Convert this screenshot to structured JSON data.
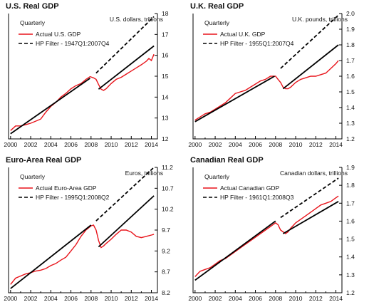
{
  "chart_data": [
    {
      "type": "line",
      "title": "U.S. Real GDP",
      "units": "U.S. dollars, trillions",
      "frequency": "Quarterly",
      "xlim": [
        1999.8,
        2014.6
      ],
      "ylim": [
        12,
        18
      ],
      "y_ticks": [
        "12",
        "13",
        "14",
        "15",
        "16",
        "17",
        "18"
      ],
      "x_ticks": [
        "2000",
        "2002",
        "2004",
        "2006",
        "2008",
        "2010",
        "2012",
        "2014"
      ],
      "legend_placement": "top-left",
      "series": [
        {
          "name": "Actual U.S. GDP",
          "color": "#e8141b",
          "style": "solid",
          "x": [
            2000.0,
            2000.5,
            2001.0,
            2001.5,
            2002.0,
            2002.5,
            2003.0,
            2003.5,
            2004.0,
            2004.5,
            2005.0,
            2005.5,
            2006.0,
            2006.5,
            2007.0,
            2007.5,
            2007.9,
            2008.25,
            2008.5,
            2008.75,
            2009.0,
            2009.25,
            2009.5,
            2010.0,
            2010.5,
            2011.0,
            2011.5,
            2012.0,
            2012.5,
            2013.0,
            2013.5,
            2013.75,
            2014.0,
            2014.25
          ],
          "y": [
            12.4,
            12.62,
            12.62,
            12.68,
            12.75,
            12.85,
            12.95,
            13.28,
            13.55,
            13.75,
            14.0,
            14.18,
            14.4,
            14.55,
            14.65,
            14.85,
            14.98,
            14.92,
            14.85,
            14.6,
            14.38,
            14.32,
            14.4,
            14.65,
            14.85,
            14.95,
            15.1,
            15.25,
            15.4,
            15.55,
            15.72,
            15.85,
            15.75,
            16.05
          ]
        },
        {
          "name": "HP Filter - 1947Q1:2007Q4",
          "color": "#000000",
          "style": "mixed",
          "x": [
            2000.0,
            2007.9,
            2008.5,
            2014.25
          ],
          "y": [
            12.25,
            14.9,
            15.15,
            17.85
          ]
        },
        {
          "name": "",
          "color": "#000000",
          "style": "solid",
          "x": [
            2008.75,
            2014.25
          ],
          "y": [
            14.38,
            16.45
          ]
        }
      ]
    },
    {
      "type": "line",
      "title": "U.K. Real GDP",
      "units": "U.K. pounds, trillions",
      "frequency": "Quarterly",
      "xlim": [
        1999.8,
        2014.6
      ],
      "ylim": [
        1.2,
        2.0
      ],
      "y_ticks": [
        "1.2",
        "1.3",
        "1.4",
        "1.5",
        "1.6",
        "1.7",
        "1.8",
        "1.9",
        "2.0"
      ],
      "x_ticks": [
        "2000",
        "2002",
        "2004",
        "2006",
        "2008",
        "2010",
        "2012",
        "2014"
      ],
      "legend_placement": "top-left",
      "series": [
        {
          "name": "Actual U.K. GDP",
          "color": "#e8141b",
          "style": "solid",
          "x": [
            2000.0,
            2000.5,
            2001.0,
            2001.5,
            2002.0,
            2002.5,
            2003.0,
            2003.5,
            2004.0,
            2004.5,
            2005.0,
            2005.5,
            2006.0,
            2006.5,
            2007.0,
            2007.5,
            2008.0,
            2008.25,
            2008.5,
            2008.75,
            2009.0,
            2009.25,
            2009.5,
            2010.0,
            2010.5,
            2011.0,
            2011.5,
            2012.0,
            2012.5,
            2013.0,
            2013.5,
            2014.0,
            2014.25
          ],
          "y": [
            1.32,
            1.34,
            1.36,
            1.37,
            1.39,
            1.41,
            1.43,
            1.46,
            1.49,
            1.5,
            1.51,
            1.53,
            1.55,
            1.57,
            1.58,
            1.6,
            1.6,
            1.58,
            1.56,
            1.53,
            1.52,
            1.52,
            1.53,
            1.56,
            1.58,
            1.59,
            1.6,
            1.6,
            1.61,
            1.62,
            1.65,
            1.68,
            1.7
          ]
        },
        {
          "name": "HP Filter - 1955Q1:2007Q4",
          "color": "#000000",
          "style": "mixed",
          "x": [
            2000.0,
            2007.9,
            2008.5,
            2014.25
          ],
          "y": [
            1.31,
            1.6,
            1.65,
            1.99
          ]
        },
        {
          "name": "",
          "color": "#000000",
          "style": "solid",
          "x": [
            2008.75,
            2014.25
          ],
          "y": [
            1.52,
            1.8
          ]
        }
      ]
    },
    {
      "type": "line",
      "title": "Euro-Area Real GDP",
      "units": "Euros, trillions",
      "frequency": "Quarterly",
      "xlim": [
        1999.8,
        2014.6
      ],
      "ylim": [
        8.2,
        11.2
      ],
      "y_ticks": [
        "8.2",
        "8.7",
        "9.2",
        "9.7",
        "10.2",
        "10.7",
        "11.2"
      ],
      "x_ticks": [
        "2000",
        "2002",
        "2004",
        "2006",
        "2008",
        "2010",
        "2012",
        "2014"
      ],
      "legend_placement": "top-left",
      "series": [
        {
          "name": "Actual Euro-Area GDP",
          "color": "#e8141b",
          "style": "solid",
          "x": [
            2000.0,
            2000.5,
            2001.0,
            2001.5,
            2002.0,
            2002.5,
            2003.0,
            2003.5,
            2004.0,
            2004.5,
            2005.0,
            2005.5,
            2006.0,
            2006.5,
            2007.0,
            2007.5,
            2008.0,
            2008.25,
            2008.5,
            2008.75,
            2009.0,
            2009.25,
            2009.5,
            2010.0,
            2010.5,
            2011.0,
            2011.5,
            2012.0,
            2012.5,
            2013.0,
            2013.5,
            2014.0,
            2014.25
          ],
          "y": [
            8.4,
            8.55,
            8.6,
            8.65,
            8.68,
            8.72,
            8.74,
            8.78,
            8.85,
            8.9,
            8.98,
            9.05,
            9.2,
            9.35,
            9.55,
            9.7,
            9.8,
            9.82,
            9.7,
            9.45,
            9.28,
            9.32,
            9.38,
            9.48,
            9.6,
            9.7,
            9.7,
            9.65,
            9.55,
            9.52,
            9.55,
            9.58,
            9.6
          ]
        },
        {
          "name": "HP Filter - 1995Q1:2008Q2",
          "color": "#000000",
          "style": "mixed",
          "x": [
            2000.0,
            2008.0,
            2008.5,
            2014.25
          ],
          "y": [
            8.3,
            9.82,
            9.92,
            11.2
          ]
        },
        {
          "name": "",
          "color": "#000000",
          "style": "solid",
          "x": [
            2008.75,
            2014.25
          ],
          "y": [
            9.3,
            10.52
          ]
        }
      ]
    },
    {
      "type": "line",
      "title": "Canadian Real GDP",
      "units": "Canadian dollars, trillions",
      "frequency": "Quarterly",
      "xlim": [
        1999.8,
        2014.6
      ],
      "ylim": [
        1.2,
        1.9
      ],
      "y_ticks": [
        "1.2",
        "1.3",
        "1.4",
        "1.5",
        "1.6",
        "1.7",
        "1.8",
        "1.9"
      ],
      "x_ticks": [
        "2000",
        "2002",
        "2004",
        "2006",
        "2008",
        "2010",
        "2012",
        "2014"
      ],
      "legend_placement": "top-left",
      "series": [
        {
          "name": "Actual Canadian GDP",
          "color": "#e8141b",
          "style": "solid",
          "x": [
            2000.0,
            2000.5,
            2001.0,
            2001.5,
            2002.0,
            2002.5,
            2003.0,
            2003.5,
            2004.0,
            2004.5,
            2005.0,
            2005.5,
            2006.0,
            2006.5,
            2007.0,
            2007.5,
            2008.0,
            2008.25,
            2008.5,
            2008.75,
            2009.0,
            2009.25,
            2009.5,
            2010.0,
            2010.5,
            2011.0,
            2011.5,
            2012.0,
            2012.5,
            2013.0,
            2013.5,
            2014.0,
            2014.25
          ],
          "y": [
            1.29,
            1.32,
            1.33,
            1.34,
            1.36,
            1.38,
            1.39,
            1.41,
            1.43,
            1.45,
            1.47,
            1.49,
            1.51,
            1.53,
            1.55,
            1.57,
            1.59,
            1.58,
            1.55,
            1.54,
            1.53,
            1.54,
            1.56,
            1.59,
            1.61,
            1.63,
            1.65,
            1.67,
            1.69,
            1.7,
            1.71,
            1.73,
            1.74
          ]
        },
        {
          "name": "HP Filter - 1961Q1:2008Q3",
          "color": "#000000",
          "style": "mixed",
          "x": [
            2000.0,
            2008.0,
            2008.5,
            2014.25
          ],
          "y": [
            1.27,
            1.6,
            1.62,
            1.84
          ]
        },
        {
          "name": "",
          "color": "#000000",
          "style": "solid",
          "x": [
            2008.75,
            2014.25
          ],
          "y": [
            1.53,
            1.71
          ]
        }
      ]
    }
  ]
}
